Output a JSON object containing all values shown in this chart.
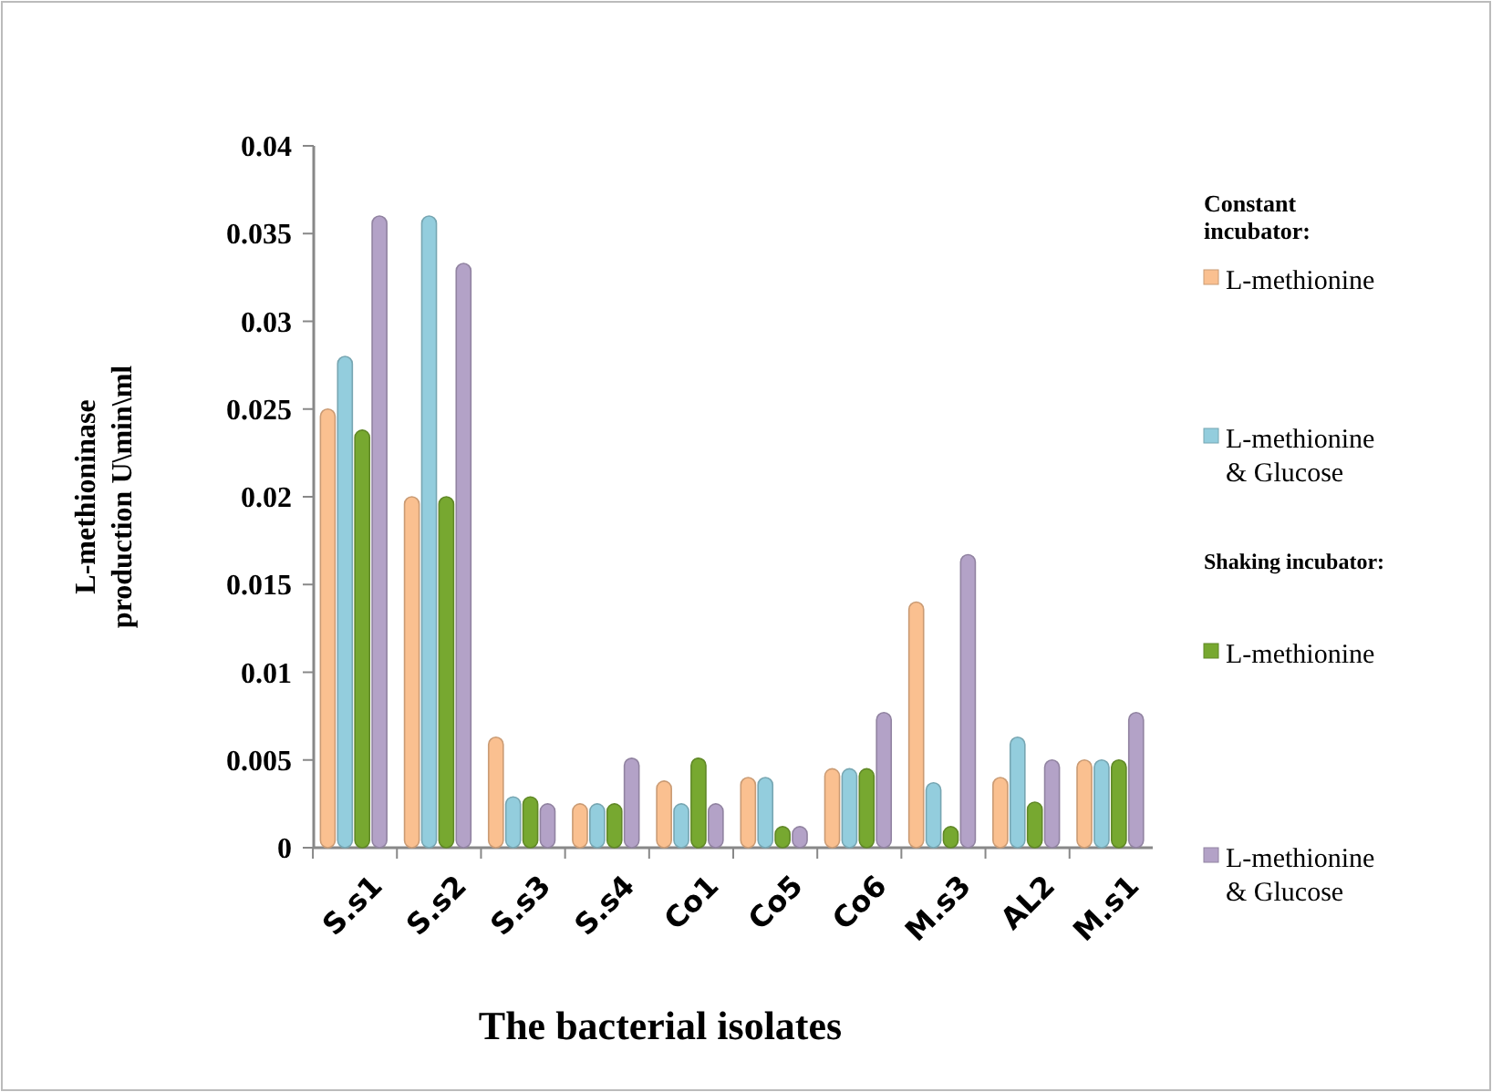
{
  "chart_data": {
    "type": "bar",
    "xlabel": "The bacterial isolates",
    "ylabel": "L-methioninase production U\\min\\ml",
    "legend_title": "Constant incubator:",
    "annotations": [
      "Shaking incubator:"
    ],
    "categories": [
      "S.s1",
      "S.s2",
      "S.s3",
      "S.s4",
      "Co1",
      "Co5",
      "Co6",
      "M.s3",
      "AL2",
      "M.s1"
    ],
    "series": [
      {
        "name": "L-methionine",
        "color": "#fac090",
        "values": [
          0.025,
          0.02,
          0.0063,
          0.0025,
          0.0038,
          0.004,
          0.0045,
          0.014,
          0.004,
          0.005
        ]
      },
      {
        "name": "L-methionine & Glucose",
        "color": "#93cddd",
        "values": [
          0.028,
          0.036,
          0.0029,
          0.0025,
          0.0025,
          0.004,
          0.0045,
          0.0037,
          0.0063,
          0.005
        ]
      },
      {
        "name": "L-methionine",
        "color": "#77a830",
        "values": [
          0.0238,
          0.02,
          0.0029,
          0.0025,
          0.0051,
          0.0012,
          0.0045,
          0.0012,
          0.0026,
          0.005
        ]
      },
      {
        "name": "L-methionine & Glucose",
        "color": "#b3a2c7",
        "values": [
          0.036,
          0.0333,
          0.0025,
          0.0051,
          0.0025,
          0.0012,
          0.0077,
          0.0167,
          0.005,
          0.0077
        ]
      }
    ],
    "ylim": [
      0,
      0.04
    ],
    "yticks": [
      0,
      0.005,
      0.01,
      0.015,
      0.02,
      0.025,
      0.03,
      0.035,
      0.04
    ],
    "grid": false,
    "legend": "right"
  }
}
